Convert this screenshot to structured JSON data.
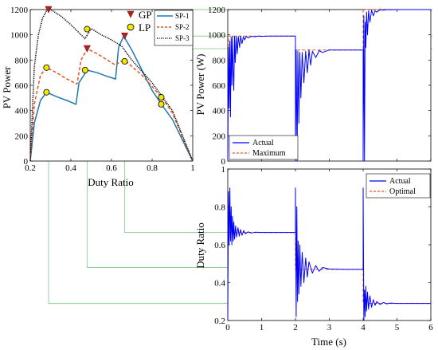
{
  "figure": {
    "connector_color": "#8fd18f"
  },
  "chart_data": [
    {
      "id": "pv_curve",
      "type": "line",
      "xlabel": "Duty Ratio",
      "ylabel": "PV Power",
      "xlim": [
        0.2,
        1.0
      ],
      "ylim": [
        0,
        1200
      ],
      "xticks": [
        "0.2",
        "0.4",
        "0.6",
        "0.8",
        "1"
      ],
      "yticks": [
        "0",
        "200",
        "400",
        "600",
        "800",
        "1000",
        "1200"
      ],
      "grid": false,
      "legend": [
        {
          "label": "SP-1",
          "color": "#1f77b4",
          "dash": "solid"
        },
        {
          "label": "SP-2",
          "color": "#e8531f",
          "dash": "dashed"
        },
        {
          "label": "SP-3",
          "color": "#000000",
          "dash": "dotted"
        }
      ],
      "marker_legend": [
        {
          "label": "GP",
          "symbol": "triangle-down",
          "color": "#b22222"
        },
        {
          "label": "LP",
          "symbol": "circle",
          "color": "#f2e600"
        }
      ],
      "series": [
        {
          "name": "SP-1",
          "color": "#1f77b4",
          "dash": "solid",
          "x": [
            0.2,
            0.22,
            0.25,
            0.28,
            0.33,
            0.38,
            0.425,
            0.44,
            0.48,
            0.53,
            0.58,
            0.62,
            0.635,
            0.66,
            0.7,
            0.75,
            0.8,
            0.85,
            0.9,
            1.0
          ],
          "y": [
            0,
            300,
            480,
            545,
            510,
            480,
            450,
            620,
            720,
            700,
            670,
            650,
            900,
            990,
            880,
            720,
            560,
            440,
            330,
            0
          ]
        },
        {
          "name": "SP-2",
          "color": "#e8531f",
          "dash": "dashed",
          "x": [
            0.2,
            0.22,
            0.25,
            0.28,
            0.33,
            0.38,
            0.43,
            0.45,
            0.48,
            0.53,
            0.58,
            0.62,
            0.645,
            0.67,
            0.7,
            0.75,
            0.8,
            0.85,
            0.9,
            1.0
          ],
          "y": [
            0,
            450,
            680,
            740,
            700,
            650,
            610,
            800,
            890,
            850,
            800,
            760,
            790,
            790,
            750,
            680,
            590,
            500,
            380,
            0
          ]
        },
        {
          "name": "SP-3",
          "color": "#000000",
          "dash": "dotted",
          "x": [
            0.2,
            0.22,
            0.24,
            0.26,
            0.28,
            0.3,
            0.35,
            0.4,
            0.45,
            0.47,
            0.5,
            0.55,
            0.6,
            0.65,
            0.7,
            0.8,
            0.9,
            1.0
          ],
          "y": [
            0,
            750,
            1000,
            1130,
            1190,
            1200,
            1150,
            1080,
            1000,
            970,
            1050,
            1000,
            960,
            910,
            800,
            620,
            400,
            0
          ]
        }
      ],
      "points": [
        {
          "type": "GP",
          "x": 0.29,
          "y": 1200
        },
        {
          "type": "GP",
          "x": 0.48,
          "y": 890
        },
        {
          "type": "GP",
          "x": 0.665,
          "y": 990
        },
        {
          "type": "LP",
          "x": 0.28,
          "y": 545
        },
        {
          "type": "LP",
          "x": 0.28,
          "y": 740
        },
        {
          "type": "LP",
          "x": 0.47,
          "y": 720
        },
        {
          "type": "LP",
          "x": 0.48,
          "y": 1045
        },
        {
          "type": "LP",
          "x": 0.665,
          "y": 790
        },
        {
          "type": "LP",
          "x": 0.845,
          "y": 505
        },
        {
          "type": "LP",
          "x": 0.845,
          "y": 450
        }
      ]
    },
    {
      "id": "pv_power_time",
      "type": "line",
      "ylabel": "PV Power (W)",
      "xlim": [
        0,
        6
      ],
      "ylim": [
        0,
        1200
      ],
      "yticks": [
        "0",
        "200",
        "400",
        "600",
        "800",
        "1000",
        "1200"
      ],
      "grid": false,
      "legend_position": "bottom-left",
      "legend": [
        {
          "label": "Actual",
          "color": "#0000ff",
          "dash": "solid"
        },
        {
          "label": "Maximum",
          "color": "#e8531f",
          "dash": "dashed"
        }
      ],
      "series": [
        {
          "name": "Maximum",
          "color": "#e8531f",
          "dash": "dashed",
          "x": [
            0,
            0.02,
            2,
            2,
            4,
            4,
            6
          ],
          "y": [
            0,
            990,
            990,
            880,
            880,
            1200,
            1200
          ]
        },
        {
          "name": "Actual",
          "color": "#0000ff",
          "dash": "solid",
          "x": [
            0,
            0.02,
            0.04,
            0.06,
            0.08,
            0.1,
            0.12,
            0.14,
            0.16,
            0.18,
            0.2,
            0.22,
            0.25,
            0.28,
            0.31,
            0.35,
            0.38,
            0.42,
            0.46,
            0.5,
            0.55,
            0.6,
            0.7,
            0.8,
            0.9,
            1.0,
            1.2,
            1.5,
            2.0,
            2.0,
            2.02,
            2.05,
            2.07,
            2.1,
            2.13,
            2.16,
            2.2,
            2.25,
            2.3,
            2.35,
            2.4,
            2.45,
            2.5,
            2.6,
            2.7,
            2.8,
            3.0,
            3.5,
            4.0,
            4.0,
            4.02,
            4.04,
            4.06,
            4.08,
            4.1,
            4.13,
            4.16,
            4.2,
            4.25,
            4.3,
            4.35,
            4.4,
            4.5,
            4.6,
            4.7,
            4.8,
            5.0,
            6.0
          ],
          "y": [
            0,
            900,
            420,
            950,
            350,
            980,
            600,
            990,
            700,
            560,
            985,
            780,
            990,
            850,
            985,
            900,
            990,
            930,
            985,
            960,
            990,
            975,
            988,
            985,
            990,
            988,
            990,
            990,
            990,
            0,
            880,
            0,
            870,
            300,
            860,
            500,
            860,
            620,
            870,
            700,
            880,
            760,
            870,
            820,
            875,
            860,
            880,
            880,
            880,
            0,
            1150,
            0,
            1100,
            900,
            1180,
            1000,
            1190,
            1100,
            1195,
            1150,
            1190,
            1180,
            1198,
            1195,
            1200,
            1198,
            1200,
            1200
          ]
        }
      ]
    },
    {
      "id": "duty_ratio_time",
      "type": "line",
      "xlabel": "Time (s)",
      "ylabel": "Duty Ratio",
      "xlim": [
        0,
        6
      ],
      "ylim": [
        0.2,
        1.0
      ],
      "xticks": [
        "0",
        "1",
        "2",
        "3",
        "4",
        "5",
        "6"
      ],
      "yticks": [
        "0.2",
        "0.4",
        "0.6",
        "0.8",
        "1"
      ],
      "grid": false,
      "legend_position": "top-right",
      "legend": [
        {
          "label": "Actual",
          "color": "#0000ff",
          "dash": "solid"
        },
        {
          "label": "Optimal",
          "color": "#e8531f",
          "dash": "dashed"
        }
      ],
      "series": [
        {
          "name": "Optimal",
          "color": "#e8531f",
          "dash": "dashed",
          "x": [
            0,
            2,
            2,
            4,
            4,
            6
          ],
          "y": [
            0.665,
            0.665,
            0.47,
            0.47,
            0.29,
            0.29
          ]
        },
        {
          "name": "Actual",
          "color": "#0000ff",
          "dash": "solid",
          "x": [
            0,
            0.02,
            0.04,
            0.06,
            0.08,
            0.1,
            0.12,
            0.14,
            0.16,
            0.18,
            0.2,
            0.23,
            0.26,
            0.3,
            0.34,
            0.38,
            0.42,
            0.47,
            0.52,
            0.6,
            0.7,
            0.8,
            1.0,
            2.0,
            2.0,
            2.02,
            2.04,
            2.06,
            2.08,
            2.1,
            2.13,
            2.16,
            2.2,
            2.25,
            2.3,
            2.35,
            2.4,
            2.5,
            2.6,
            2.7,
            2.8,
            3.0,
            3.5,
            4.0,
            4.0,
            4.02,
            4.04,
            4.06,
            4.08,
            4.1,
            4.13,
            4.16,
            4.2,
            4.25,
            4.3,
            4.35,
            4.4,
            4.5,
            4.6,
            4.7,
            4.8,
            5.0,
            6.0
          ],
          "y": [
            0.2,
            0.88,
            0.6,
            0.9,
            0.62,
            0.8,
            0.6,
            0.75,
            0.62,
            0.72,
            0.63,
            0.7,
            0.64,
            0.69,
            0.645,
            0.68,
            0.65,
            0.675,
            0.658,
            0.668,
            0.662,
            0.666,
            0.665,
            0.665,
            0.9,
            0.22,
            0.8,
            0.3,
            0.62,
            0.34,
            0.6,
            0.38,
            0.56,
            0.4,
            0.53,
            0.43,
            0.51,
            0.45,
            0.49,
            0.46,
            0.48,
            0.472,
            0.47,
            0.47,
            0.9,
            0.2,
            0.36,
            0.22,
            0.38,
            0.25,
            0.35,
            0.26,
            0.33,
            0.27,
            0.31,
            0.28,
            0.3,
            0.285,
            0.295,
            0.288,
            0.292,
            0.29,
            0.29
          ]
        }
      ]
    }
  ]
}
